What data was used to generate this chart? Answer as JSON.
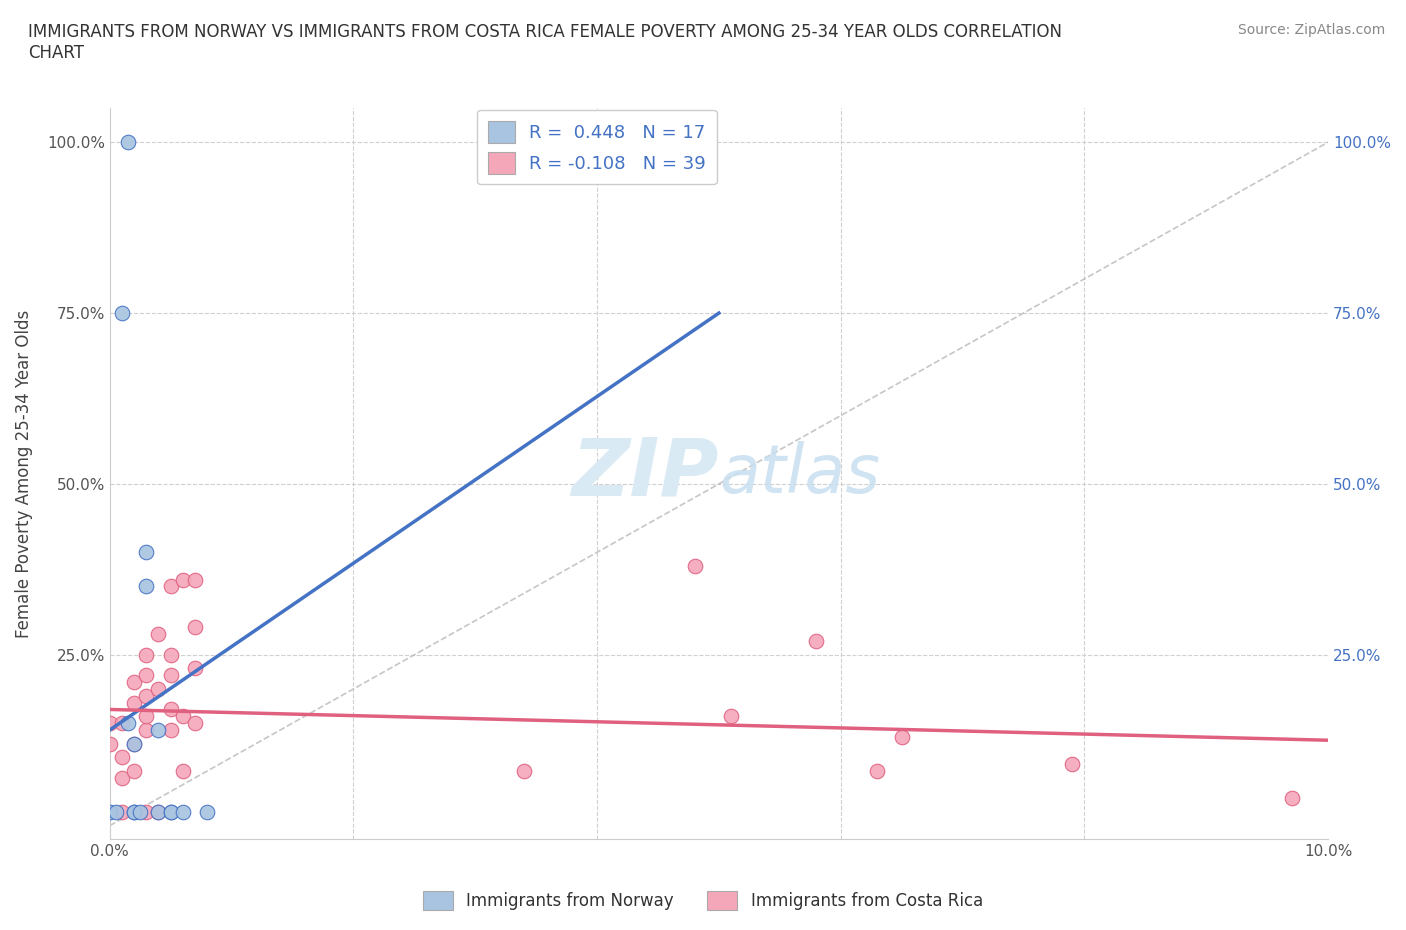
{
  "title": "IMMIGRANTS FROM NORWAY VS IMMIGRANTS FROM COSTA RICA FEMALE POVERTY AMONG 25-34 YEAR OLDS CORRELATION\nCHART",
  "source": "Source: ZipAtlas.com",
  "ylabel": "Female Poverty Among 25-34 Year Olds",
  "xlabel": "",
  "xlim": [
    0.0,
    0.1
  ],
  "ylim": [
    -0.02,
    1.05
  ],
  "norway_R": 0.448,
  "norway_N": 17,
  "costarica_R": -0.108,
  "costarica_N": 39,
  "norway_color": "#a8c4e0",
  "costarica_color": "#f4a7b9",
  "norway_line_color": "#4472c4",
  "costarica_line_color": "#e06080",
  "diagonal_color": "#b8b8b8",
  "background_color": "#ffffff",
  "watermark_color": "#daeaf5",
  "norway_points_x": [
    0.0,
    0.0005,
    0.001,
    0.0015,
    0.002,
    0.002,
    0.002,
    0.003,
    0.003,
    0.004,
    0.004,
    0.005,
    0.005,
    0.006,
    0.008,
    0.0015,
    0.0025
  ],
  "norway_points_y": [
    0.02,
    0.02,
    0.75,
    0.15,
    0.12,
    0.02,
    0.02,
    0.35,
    0.4,
    0.14,
    0.02,
    0.02,
    0.02,
    0.02,
    0.02,
    1.0,
    0.02
  ],
  "costarica_points_x": [
    0.0,
    0.0,
    0.001,
    0.001,
    0.001,
    0.001,
    0.002,
    0.002,
    0.002,
    0.002,
    0.003,
    0.003,
    0.003,
    0.003,
    0.003,
    0.003,
    0.004,
    0.004,
    0.004,
    0.005,
    0.005,
    0.005,
    0.005,
    0.005,
    0.006,
    0.006,
    0.006,
    0.007,
    0.007,
    0.007,
    0.007,
    0.034,
    0.048,
    0.051,
    0.058,
    0.063,
    0.065,
    0.079,
    0.097
  ],
  "costarica_points_y": [
    0.12,
    0.15,
    0.02,
    0.07,
    0.1,
    0.15,
    0.08,
    0.12,
    0.18,
    0.21,
    0.02,
    0.14,
    0.16,
    0.19,
    0.22,
    0.25,
    0.02,
    0.2,
    0.28,
    0.14,
    0.17,
    0.22,
    0.25,
    0.35,
    0.08,
    0.16,
    0.36,
    0.15,
    0.23,
    0.29,
    0.36,
    0.08,
    0.38,
    0.16,
    0.27,
    0.08,
    0.13,
    0.09,
    0.04
  ],
  "norway_line_x0": 0.0,
  "norway_line_y0": 0.14,
  "norway_line_x1": 0.05,
  "norway_line_y1": 0.75,
  "costarica_line_x0": 0.0,
  "costarica_line_y0": 0.17,
  "costarica_line_x1": 0.1,
  "costarica_line_y1": 0.125
}
